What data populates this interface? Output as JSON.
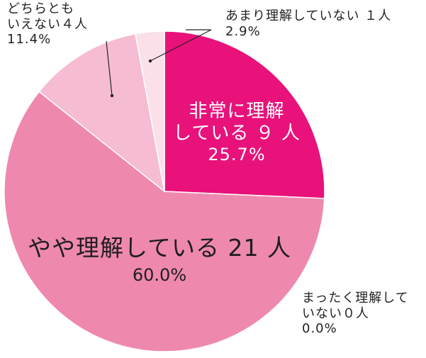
{
  "chart_data": {
    "type": "pie",
    "slices": [
      {
        "label": "非常に理解している",
        "count_text": "９人",
        "value": 25.7,
        "pct_text": "25.7%",
        "color": "#e8127a"
      },
      {
        "label": "やや理解している",
        "count_text": "21 人",
        "value": 60.0,
        "pct_text": "60.0%",
        "color": "#ef88ae"
      },
      {
        "label": "まったく理解していない",
        "count_text": "０人",
        "value": 0.0,
        "pct_text": "0.0%",
        "color": "#ef88ae"
      },
      {
        "label": "どちらともいえない",
        "count_text": "４人",
        "value": 11.4,
        "pct_text": "11.4%",
        "color": "#f6bcd3"
      },
      {
        "label": "あまり理解していない",
        "count_text": "１人",
        "value": 2.9,
        "pct_text": "2.9%",
        "color": "#fbe0ea"
      }
    ]
  },
  "labels": {
    "hijou_line1": "非常に理解",
    "hijou_line2": "している ９ 人",
    "hijou_pct": "25.7%",
    "yaya_line1": "やや理解している 21 人",
    "yaya_pct": "60.0%",
    "mattaku_line1": "まったく理解して",
    "mattaku_line2": "いない０人",
    "mattaku_pct": "0.0%",
    "dochira_line1": "どちらとも",
    "dochira_line2": "いえない４人",
    "dochira_pct": "11.4%",
    "amari_line1": "あまり理解していない １人",
    "amari_pct": "2.9%"
  }
}
